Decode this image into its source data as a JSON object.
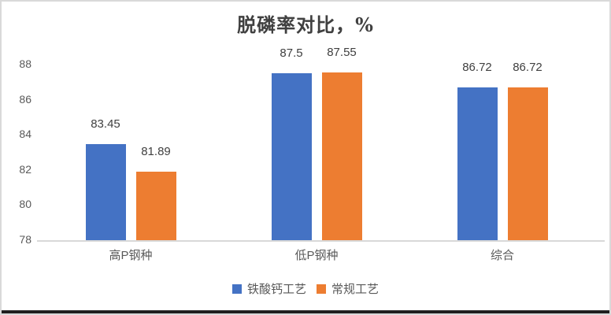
{
  "chart_data": {
    "type": "bar",
    "title": "脱磷率对比，%",
    "categories": [
      "高P钢种",
      "低P钢种",
      "综合"
    ],
    "series": [
      {
        "name": "铁酸钙工艺",
        "color": "#4472C4",
        "values": [
          83.45,
          87.5,
          86.72
        ],
        "value_labels": [
          "83.45",
          "87.5",
          "86.72"
        ]
      },
      {
        "name": "常规工艺",
        "color": "#ED7D31",
        "values": [
          81.89,
          87.55,
          86.72
        ],
        "value_labels": [
          "81.89",
          "87.55",
          "86.72"
        ]
      }
    ],
    "ylim": [
      78,
      88
    ],
    "yticks": [
      78,
      80,
      82,
      84,
      86,
      88
    ],
    "grid": false,
    "legend_position": "bottom",
    "axis_line_color": "#d9d9d9",
    "tick_label_color": "#595959",
    "data_label_color": "#404040",
    "title_color": "#404040"
  }
}
